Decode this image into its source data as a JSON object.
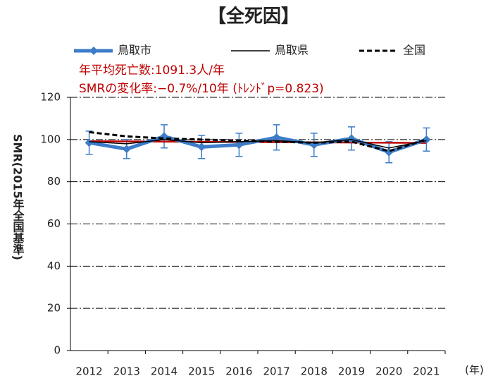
{
  "chart_data": {
    "type": "line",
    "title": "【全死因】",
    "annotations": [
      "年平均死亡数:1091.3人/年",
      "SMRの変化率:−0.7%/10年 (ﾄﾚﾝﾄﾞp=0.823)"
    ],
    "y_label": "SMR(2015年全国基準)",
    "x_label": "(年)",
    "categories": [
      "2012",
      "2013",
      "2014",
      "2015",
      "2016",
      "2017",
      "2018",
      "2019",
      "2020",
      "2021"
    ],
    "series": [
      {
        "name": "鳥取市",
        "color": "#3d7cc9",
        "values": [
          98.5,
          95.5,
          101.5,
          96.5,
          97.5,
          101,
          97.5,
          100.5,
          94,
          100
        ],
        "errors": [
          5.5,
          4.5,
          5.5,
          5.5,
          5.5,
          6,
          5.5,
          5.5,
          5,
          5.5
        ]
      },
      {
        "name": "鳥取県",
        "color": "#000000",
        "values": [
          99,
          98,
          100,
          98.5,
          99,
          99.5,
          98.5,
          100,
          96,
          99.5
        ]
      },
      {
        "name": "全国",
        "color": "#000000",
        "dashed": true,
        "values": [
          103.5,
          101.5,
          100.5,
          100,
          99.5,
          99,
          98.5,
          99,
          94.5,
          100
        ]
      }
    ],
    "trend_line": {
      "color": "#c00000",
      "values": [
        99.2,
        98.4
      ]
    },
    "ylim": [
      0,
      120
    ],
    "yticks": [
      0,
      20,
      40,
      60,
      80,
      100,
      120
    ],
    "grid": true
  }
}
